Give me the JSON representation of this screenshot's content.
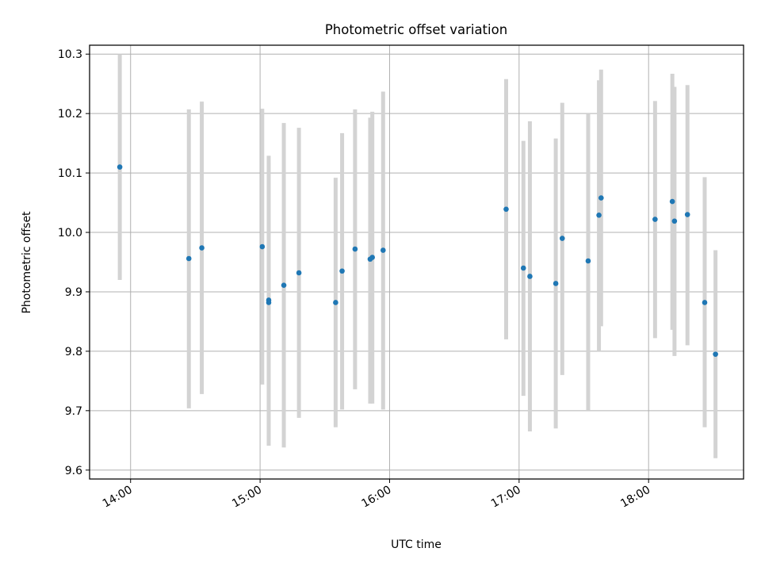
{
  "chart_data": {
    "type": "scatter",
    "title": "Photometric offset variation",
    "xlabel": "UTC time",
    "ylabel": "Photometric offset",
    "x_axis_type": "time",
    "xlim": [
      "13:41",
      "18:44"
    ],
    "ylim": [
      9.585,
      10.315
    ],
    "grid": true,
    "x_ticks": [
      {
        "value": "14:00",
        "label": "14:00"
      },
      {
        "value": "15:00",
        "label": "15:00"
      },
      {
        "value": "16:00",
        "label": "16:00"
      },
      {
        "value": "17:00",
        "label": "17:00"
      },
      {
        "value": "18:00",
        "label": "18:00"
      }
    ],
    "y_ticks": [
      {
        "value": 9.6,
        "label": "9.6"
      },
      {
        "value": 9.7,
        "label": "9.7"
      },
      {
        "value": 9.8,
        "label": "9.8"
      },
      {
        "value": 9.9,
        "label": "9.9"
      },
      {
        "value": 10.0,
        "label": "10.0"
      },
      {
        "value": 10.1,
        "label": "10.1"
      },
      {
        "value": 10.2,
        "label": "10.2"
      },
      {
        "value": 10.3,
        "label": "10.3"
      }
    ],
    "marker_color": "#1f77b4",
    "errorbar_color": "#d3d3d3",
    "points": [
      {
        "x": "13:55",
        "y": 10.11,
        "ylow": 9.92,
        "yhigh": 10.3
      },
      {
        "x": "14:27",
        "y": 9.956,
        "ylow": 9.704,
        "yhigh": 10.207
      },
      {
        "x": "14:33",
        "y": 9.974,
        "ylow": 9.728,
        "yhigh": 10.22
      },
      {
        "x": "15:01",
        "y": 9.976,
        "ylow": 9.744,
        "yhigh": 10.208
      },
      {
        "x": "15:04",
        "y": 9.882,
        "ylow": 9.652,
        "yhigh": 10.118
      },
      {
        "x": "15:04",
        "y": 9.886,
        "ylow": 9.641,
        "yhigh": 10.129
      },
      {
        "x": "15:11",
        "y": 9.911,
        "ylow": 9.638,
        "yhigh": 10.184
      },
      {
        "x": "15:18",
        "y": 9.932,
        "ylow": 9.688,
        "yhigh": 10.176
      },
      {
        "x": "15:35",
        "y": 9.882,
        "ylow": 9.672,
        "yhigh": 10.092
      },
      {
        "x": "15:38",
        "y": 9.935,
        "ylow": 9.702,
        "yhigh": 10.167
      },
      {
        "x": "15:44",
        "y": 9.972,
        "ylow": 9.736,
        "yhigh": 10.207
      },
      {
        "x": "15:51",
        "y": 9.955,
        "ylow": 9.712,
        "yhigh": 10.193
      },
      {
        "x": "15:52",
        "y": 9.958,
        "ylow": 9.712,
        "yhigh": 10.203
      },
      {
        "x": "15:57",
        "y": 9.97,
        "ylow": 9.702,
        "yhigh": 10.237
      },
      {
        "x": "16:54",
        "y": 10.039,
        "ylow": 9.82,
        "yhigh": 10.258
      },
      {
        "x": "17:02",
        "y": 9.94,
        "ylow": 9.725,
        "yhigh": 10.154
      },
      {
        "x": "17:05",
        "y": 9.926,
        "ylow": 9.665,
        "yhigh": 10.187
      },
      {
        "x": "17:17",
        "y": 9.914,
        "ylow": 9.67,
        "yhigh": 10.158
      },
      {
        "x": "17:20",
        "y": 9.99,
        "ylow": 9.76,
        "yhigh": 10.218
      },
      {
        "x": "17:32",
        "y": 9.952,
        "ylow": 9.7,
        "yhigh": 10.2
      },
      {
        "x": "17:37",
        "y": 10.029,
        "ylow": 9.8,
        "yhigh": 10.256
      },
      {
        "x": "17:38",
        "y": 10.058,
        "ylow": 9.842,
        "yhigh": 10.274
      },
      {
        "x": "18:03",
        "y": 10.022,
        "ylow": 9.822,
        "yhigh": 10.221
      },
      {
        "x": "18:11",
        "y": 10.052,
        "ylow": 9.836,
        "yhigh": 10.267
      },
      {
        "x": "18:12",
        "y": 10.019,
        "ylow": 9.792,
        "yhigh": 10.245
      },
      {
        "x": "18:18",
        "y": 10.03,
        "ylow": 9.81,
        "yhigh": 10.248
      },
      {
        "x": "18:26",
        "y": 9.882,
        "ylow": 9.672,
        "yhigh": 10.093
      },
      {
        "x": "18:31",
        "y": 9.795,
        "ylow": 9.62,
        "yhigh": 9.97
      }
    ]
  }
}
